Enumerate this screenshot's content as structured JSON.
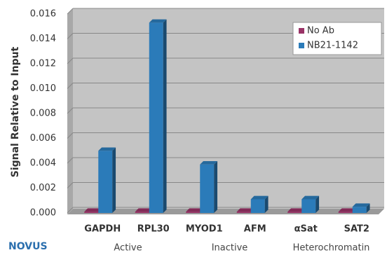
{
  "chart_data": {
    "type": "bar3d",
    "y_label": "Signal Relative to Input",
    "categories": [
      "GAPDH",
      "RPL30",
      "MYOD1",
      "AFM",
      "αSat",
      "SAT2"
    ],
    "groups": [
      {
        "label": "Active",
        "span": [
          0,
          1
        ]
      },
      {
        "label": "Inactive",
        "span": [
          2,
          3
        ]
      },
      {
        "label": "Heterochromatin",
        "span": [
          4,
          5
        ]
      }
    ],
    "series": [
      {
        "name": "No Ab",
        "color": "#993366",
        "values": [
          0.0001,
          0.0001,
          0.0001,
          0.0001,
          0.0001,
          0.0001
        ]
      },
      {
        "name": "NB21-1142",
        "color": "#2b7bb9",
        "values": [
          0.005,
          0.0153,
          0.0039,
          0.0011,
          0.0011,
          0.0005
        ]
      }
    ],
    "ylim": [
      0,
      0.016
    ],
    "yticks": [
      {
        "value": 0,
        "label": "0.000"
      },
      {
        "value": 0.002,
        "label": "0.002"
      },
      {
        "value": 0.004,
        "label": "0.004"
      },
      {
        "value": 0.006,
        "label": "0.006"
      },
      {
        "value": 0.008,
        "label": "0.008"
      },
      {
        "value": 0.01,
        "label": "0.010"
      },
      {
        "value": 0.012,
        "label": "0.012"
      },
      {
        "value": 0.014,
        "label": "0.014"
      },
      {
        "value": 0.016,
        "label": "0.016"
      }
    ],
    "grid": true,
    "legend": "top-right",
    "logo": "NOVUS"
  }
}
